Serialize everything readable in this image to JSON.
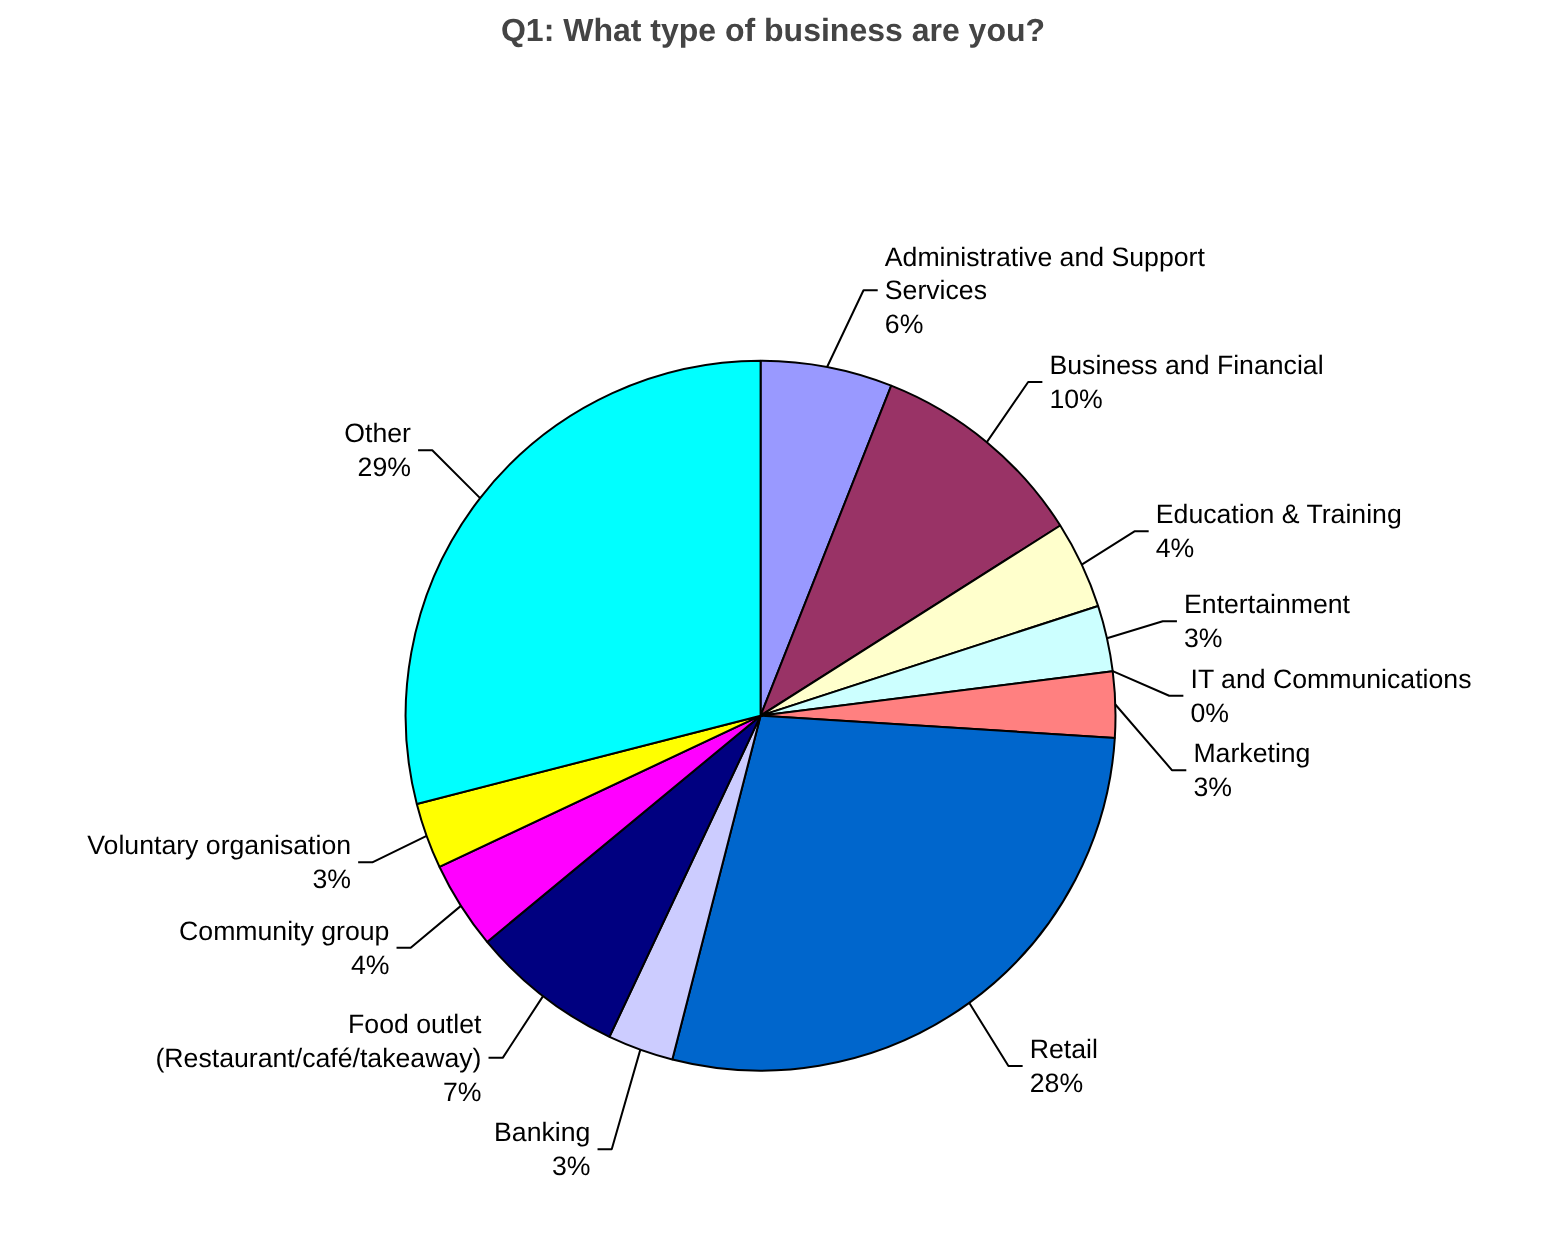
{
  "chart_data": {
    "type": "pie",
    "title": "Q1: What type of business are you?",
    "categories": [
      "Administrative and Support Services",
      "Business and Financial",
      "Education & Training",
      "Entertainment",
      "IT and Communications",
      "Marketing",
      "Retail",
      "Banking",
      "Food outlet (Restaurant/café/takeaway)",
      "Community group",
      "Voluntary organisation",
      "Other"
    ],
    "values": [
      6,
      10,
      4,
      3,
      0,
      3,
      28,
      3,
      7,
      4,
      3,
      29
    ],
    "value_labels": [
      "6%",
      "10%",
      "4%",
      "3%",
      "0%",
      "3%",
      "28%",
      "3%",
      "7%",
      "4%",
      "3%",
      "29%"
    ],
    "colors": [
      "#9999ff",
      "#993366",
      "#ffffcc",
      "#ccffff",
      "#660066",
      "#ff8080",
      "#0066cc",
      "#ccccff",
      "#000080",
      "#ff00ff",
      "#ffff00",
      "#00ffff"
    ]
  }
}
